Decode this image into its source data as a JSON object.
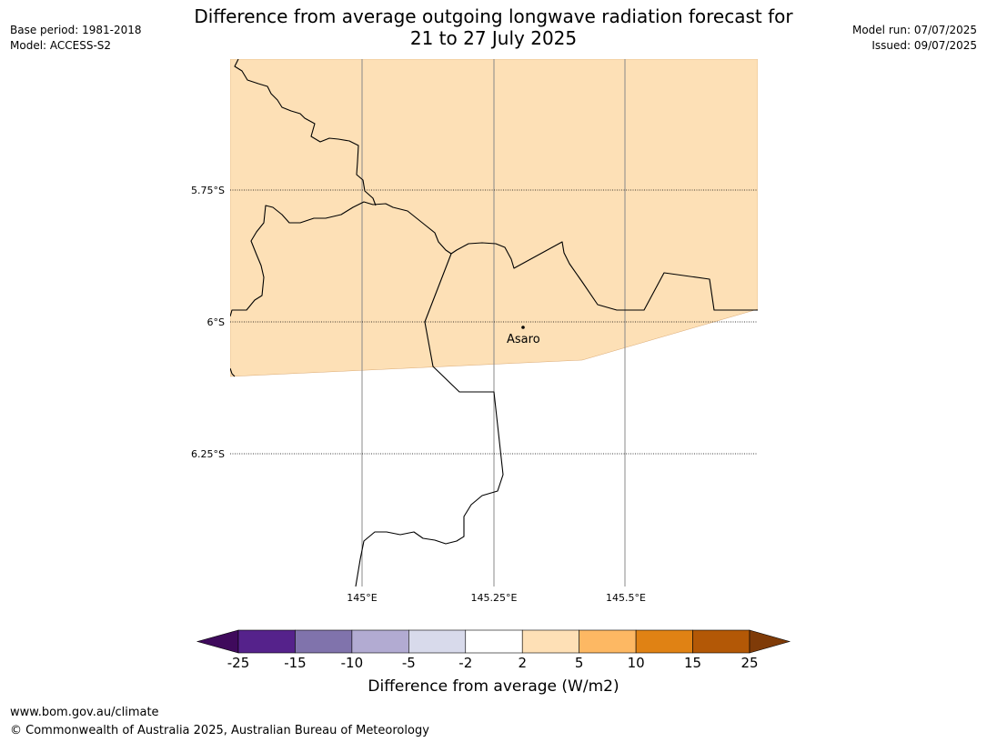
{
  "meta": {
    "base_period": "Base period: 1981-2018",
    "model": "Model: ACCESS-S2",
    "model_run": "Model run: 07/07/2025",
    "issued": "Issued: 09/07/2025"
  },
  "title": {
    "line1": "Difference from average outgoing longwave radiation forecast for",
    "line2": "21 to 27 July 2025"
  },
  "map": {
    "lat_labels": [
      "5.75°S",
      "6°S",
      "6.25°S"
    ],
    "lon_labels": [
      "145°E",
      "145.25°E",
      "145.5°E"
    ],
    "place": "Asaro",
    "fill_color": "#fde0b6"
  },
  "colorbar": {
    "title": "Difference from average (W/m2)",
    "ticks": [
      "-25",
      "-15",
      "-10",
      "-5",
      "-2",
      "2",
      "5",
      "10",
      "15",
      "25"
    ],
    "colors": [
      "#3f0a5c",
      "#55228b",
      "#8073ac",
      "#b2abd2",
      "#d8daeb",
      "#ffffff",
      "#fee0b6",
      "#fdb863",
      "#e08214",
      "#b35806",
      "#7f3b08"
    ]
  },
  "footer": {
    "url": "www.bom.gov.au/climate",
    "copyright": "© Commonwealth of Australia 2025, Australian Bureau of Meteorology"
  }
}
